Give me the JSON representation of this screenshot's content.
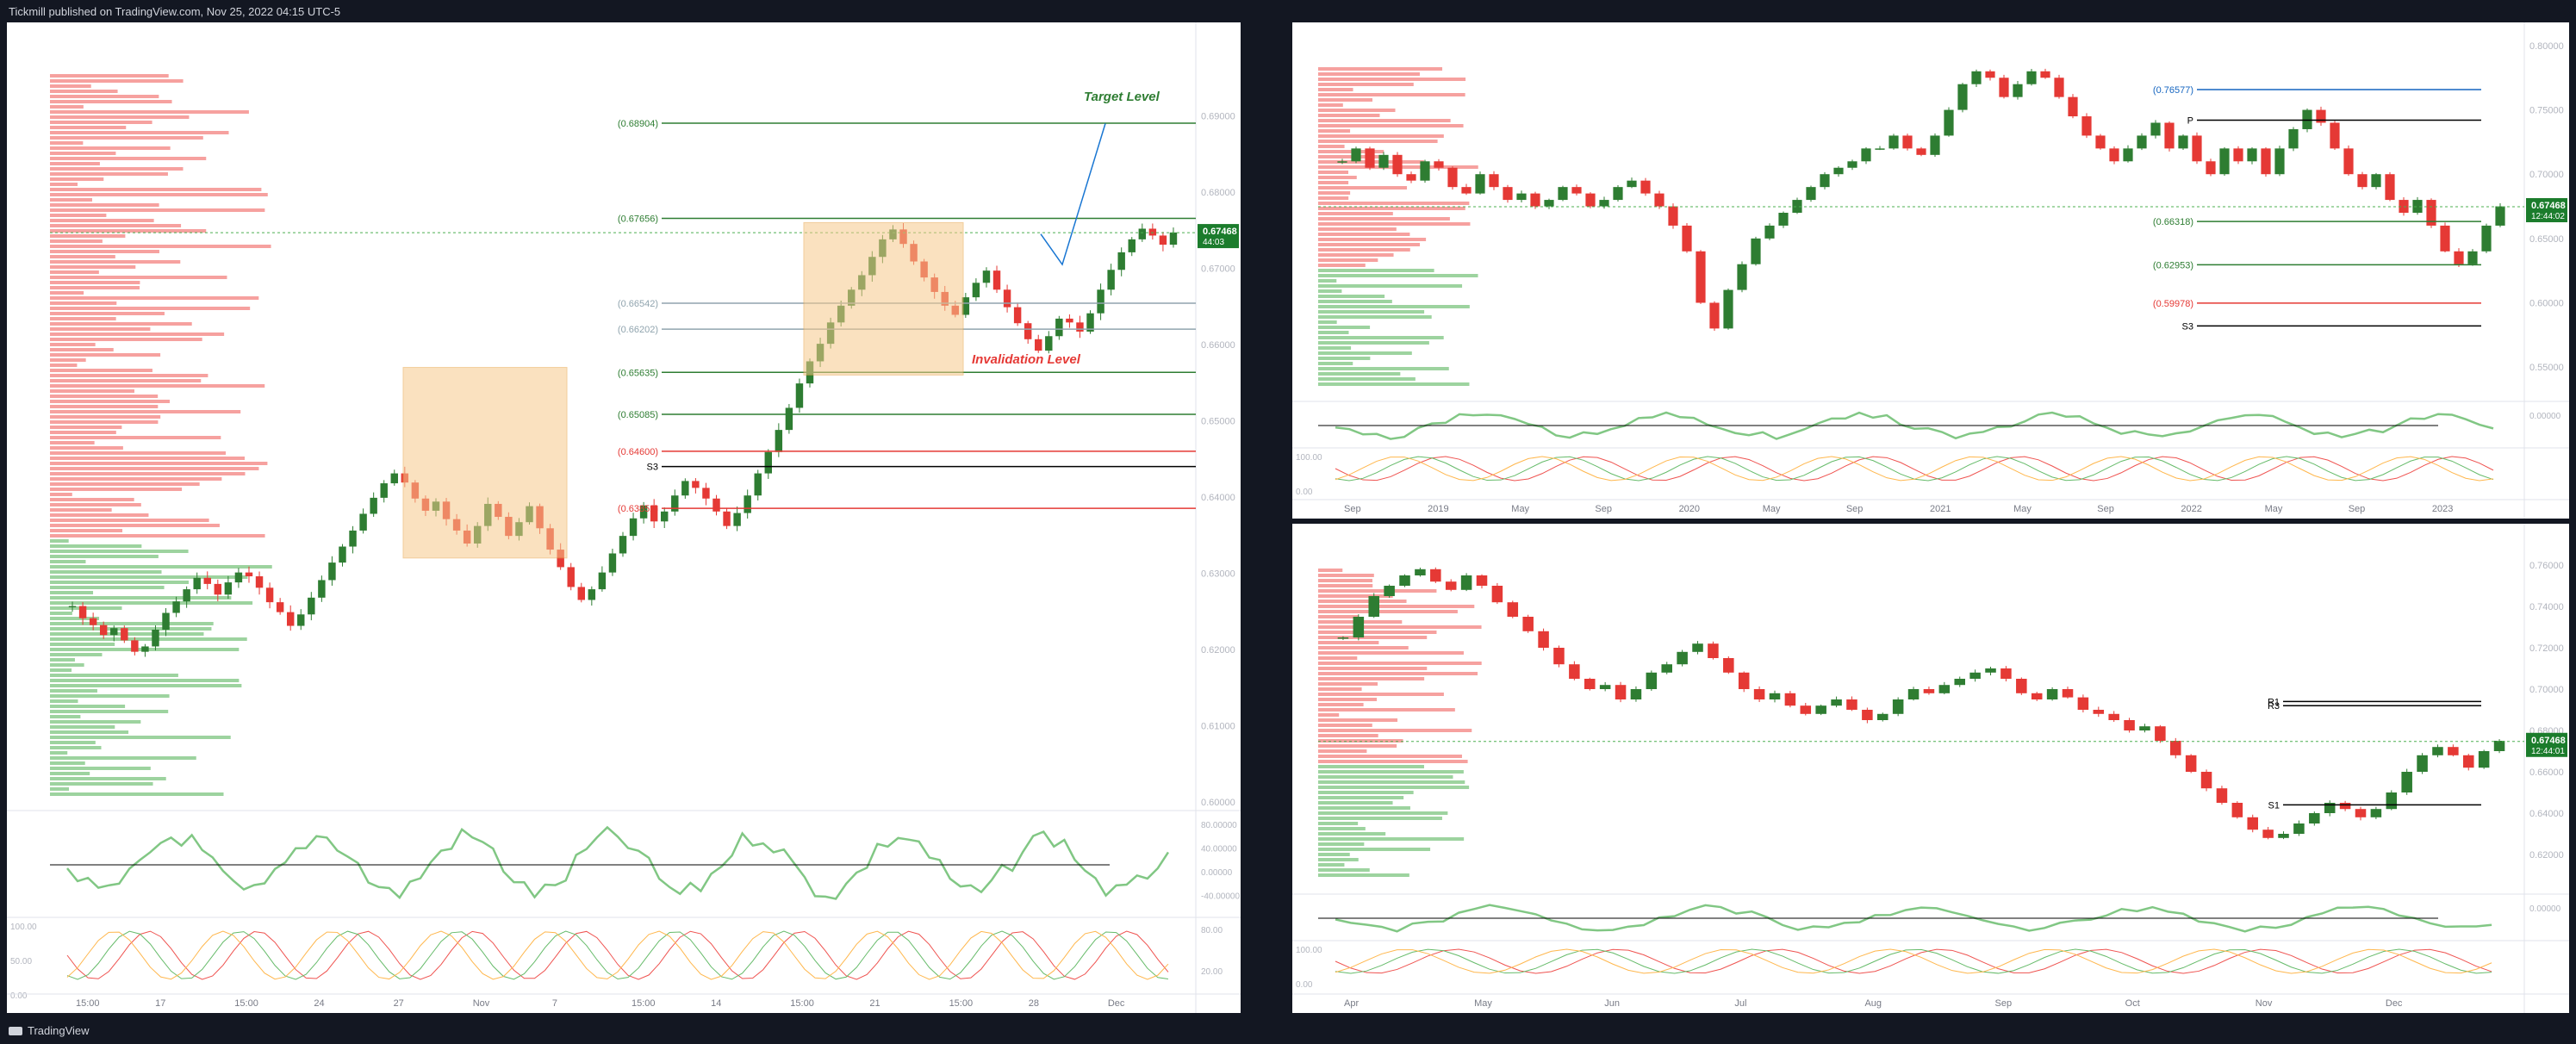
{
  "header": {
    "text": "Tickmill published on TradingView.com, Nov 25, 2022 04:15 UTC-5"
  },
  "footer": {
    "brand": "TradingView"
  },
  "colors": {
    "bull": "#2e7d32",
    "bear": "#e53935",
    "box": "#f7c98b",
    "box_border": "#e8a64b",
    "axis": "#787b86",
    "price_tag": "#1b7c2c"
  },
  "chart_data": [
    {
      "id": "left",
      "type": "candlestick",
      "ylim": [
        0.6,
        0.7
      ],
      "price_ticks": [
        "0.69000",
        "0.68000",
        "0.67000",
        "0.66000",
        "0.65000",
        "0.64000",
        "0.63000",
        "0.62000",
        "0.61000",
        "0.60000"
      ],
      "price_tick_values": [
        0.69,
        0.68,
        0.67,
        0.66,
        0.65,
        0.64,
        0.63,
        0.62,
        0.61,
        0.6
      ],
      "time_ticks": [
        "15:00",
        "17",
        "15:00",
        "24",
        "27",
        "Nov",
        "7",
        "15:00",
        "14",
        "15:00",
        "21",
        "15:00",
        "28",
        "Dec"
      ],
      "last_price": {
        "value": "0.67468",
        "countdown": "44:03"
      },
      "levels": [
        {
          "label": "(0.68904)",
          "value": 0.68904,
          "color": "#2e7d32"
        },
        {
          "label": "(0.67656)",
          "value": 0.67656,
          "color": "#2e7d32"
        },
        {
          "label": "(0.66542)",
          "value": 0.66542,
          "color": "#90a4ae"
        },
        {
          "label": "(0.66202)",
          "value": 0.66202,
          "color": "#90a4ae"
        },
        {
          "label": "(0.65635)",
          "value": 0.65635,
          "color": "#2e7d32"
        },
        {
          "label": "(0.65085)",
          "value": 0.65085,
          "color": "#2e7d32"
        },
        {
          "label": "(0.64600)",
          "value": 0.646,
          "color": "#e53935"
        },
        {
          "label": "S3",
          "value": 0.644,
          "color": "#000000"
        },
        {
          "label": "(0.63852)",
          "value": 0.63852,
          "color": "#e53935"
        }
      ],
      "annotations": [
        {
          "text": "Target Level",
          "color": "#2e7d32"
        },
        {
          "text": "Invalidation Level",
          "color": "#e53935"
        }
      ],
      "rsi_ticks": [
        "80.00000",
        "40.00000",
        "0.00000",
        "-40.00000"
      ],
      "stoch_ticks": [
        "100.00",
        "50.00",
        "0.00"
      ],
      "stoch_right_ticks": [
        "80.00",
        "20.00"
      ],
      "close_series": [
        0.6257,
        0.6241,
        0.6232,
        0.6219,
        0.6228,
        0.6212,
        0.6197,
        0.6204,
        0.6226,
        0.6248,
        0.6263,
        0.6279,
        0.6294,
        0.6286,
        0.6272,
        0.6288,
        0.6301,
        0.6296,
        0.6281,
        0.6262,
        0.6249,
        0.6231,
        0.6246,
        0.6268,
        0.6291,
        0.6314,
        0.6335,
        0.6356,
        0.6378,
        0.6399,
        0.6418,
        0.6431,
        0.6419,
        0.6398,
        0.6382,
        0.6394,
        0.6371,
        0.6356,
        0.6339,
        0.6362,
        0.6391,
        0.6374,
        0.6349,
        0.6367,
        0.6388,
        0.6359,
        0.6331,
        0.6308,
        0.6282,
        0.6265,
        0.6279,
        0.6301,
        0.6326,
        0.6349,
        0.6372,
        0.6389,
        0.6368,
        0.6381,
        0.6402,
        0.6421,
        0.6412,
        0.6398,
        0.6381,
        0.6362,
        0.6379,
        0.6402,
        0.6431,
        0.6459,
        0.6488,
        0.6517,
        0.6549,
        0.6578,
        0.6601,
        0.6629,
        0.6651,
        0.6672,
        0.6691,
        0.6715,
        0.6738,
        0.6751,
        0.6732,
        0.6709,
        0.6688,
        0.6669,
        0.6651,
        0.6639,
        0.6662,
        0.6681,
        0.6697,
        0.6672,
        0.6649,
        0.6628,
        0.6607,
        0.6592,
        0.6611,
        0.6634,
        0.6629,
        0.6617,
        0.6641,
        0.6672,
        0.6698,
        0.6721,
        0.6738,
        0.6752,
        0.6743,
        0.6731,
        0.6747
      ]
    },
    {
      "id": "top-right",
      "type": "candlestick",
      "ylim": [
        0.53,
        0.81
      ],
      "price_ticks": [
        "0.80000",
        "0.75000",
        "0.70000",
        "0.65000",
        "0.60000",
        "0.55000"
      ],
      "price_tick_values": [
        0.8,
        0.75,
        0.7,
        0.65,
        0.6,
        0.55
      ],
      "time_ticks": [
        "Sep",
        "2019",
        "May",
        "Sep",
        "2020",
        "May",
        "Sep",
        "2021",
        "May",
        "Sep",
        "2022",
        "May",
        "Sep",
        "2023"
      ],
      "last_price": {
        "value": "0.67468",
        "countdown": "12:44:02"
      },
      "levels": [
        {
          "label": "(0.76577)",
          "value": 0.76577,
          "color": "#1565c0"
        },
        {
          "label": "P",
          "value": 0.742,
          "color": "#000000"
        },
        {
          "label": "(0.66318)",
          "value": 0.66318,
          "color": "#2e7d32"
        },
        {
          "label": "(0.62953)",
          "value": 0.62953,
          "color": "#2e7d32"
        },
        {
          "label": "(0.59978)",
          "value": 0.59978,
          "color": "#e53935"
        },
        {
          "label": "S3",
          "value": 0.582,
          "color": "#000000"
        }
      ],
      "rsi_ticks": [
        "0.00000"
      ],
      "stoch_ticks": [
        "100.00",
        "0.00"
      ],
      "close_series": [
        0.71,
        0.72,
        0.705,
        0.715,
        0.7,
        0.695,
        0.71,
        0.705,
        0.69,
        0.685,
        0.7,
        0.69,
        0.68,
        0.685,
        0.675,
        0.68,
        0.69,
        0.685,
        0.675,
        0.68,
        0.69,
        0.695,
        0.685,
        0.675,
        0.66,
        0.64,
        0.6,
        0.58,
        0.61,
        0.63,
        0.65,
        0.66,
        0.67,
        0.68,
        0.69,
        0.7,
        0.705,
        0.71,
        0.72,
        0.72,
        0.73,
        0.72,
        0.715,
        0.73,
        0.75,
        0.77,
        0.78,
        0.775,
        0.76,
        0.77,
        0.78,
        0.775,
        0.76,
        0.745,
        0.73,
        0.72,
        0.71,
        0.72,
        0.73,
        0.74,
        0.72,
        0.73,
        0.71,
        0.7,
        0.72,
        0.71,
        0.72,
        0.7,
        0.72,
        0.735,
        0.75,
        0.74,
        0.72,
        0.7,
        0.69,
        0.7,
        0.68,
        0.67,
        0.68,
        0.66,
        0.64,
        0.63,
        0.64,
        0.66,
        0.675
      ]
    },
    {
      "id": "bottom-right",
      "type": "candlestick",
      "ylim": [
        0.605,
        0.775
      ],
      "price_ticks": [
        "0.76000",
        "0.74000",
        "0.72000",
        "0.70000",
        "0.68000",
        "0.66000",
        "0.64000",
        "0.62000"
      ],
      "price_tick_values": [
        0.76,
        0.74,
        0.72,
        0.7,
        0.68,
        0.66,
        0.64,
        0.62
      ],
      "time_ticks": [
        "Apr",
        "May",
        "Jun",
        "Jul",
        "Aug",
        "Sep",
        "Oct",
        "Nov",
        "Dec"
      ],
      "last_price": {
        "value": "0.67468",
        "countdown": "12:44:01"
      },
      "levels": [
        {
          "label": "R1",
          "value": 0.694,
          "color": "#000000"
        },
        {
          "label": "R3",
          "value": 0.692,
          "color": "#000000"
        },
        {
          "label": "S1",
          "value": 0.644,
          "color": "#000000"
        }
      ],
      "rsi_ticks": [
        "0.00000"
      ],
      "stoch_ticks": [
        "100.00",
        "0.00"
      ],
      "close_series": [
        0.725,
        0.735,
        0.745,
        0.75,
        0.755,
        0.758,
        0.752,
        0.748,
        0.755,
        0.75,
        0.742,
        0.735,
        0.728,
        0.72,
        0.712,
        0.705,
        0.7,
        0.702,
        0.695,
        0.7,
        0.708,
        0.712,
        0.718,
        0.722,
        0.715,
        0.708,
        0.7,
        0.695,
        0.698,
        0.692,
        0.688,
        0.692,
        0.695,
        0.69,
        0.685,
        0.688,
        0.695,
        0.7,
        0.698,
        0.702,
        0.705,
        0.708,
        0.71,
        0.705,
        0.698,
        0.695,
        0.7,
        0.696,
        0.69,
        0.688,
        0.685,
        0.68,
        0.682,
        0.675,
        0.668,
        0.66,
        0.652,
        0.645,
        0.638,
        0.632,
        0.628,
        0.63,
        0.635,
        0.64,
        0.645,
        0.642,
        0.638,
        0.642,
        0.65,
        0.66,
        0.668,
        0.672,
        0.668,
        0.662,
        0.67,
        0.675
      ]
    }
  ]
}
